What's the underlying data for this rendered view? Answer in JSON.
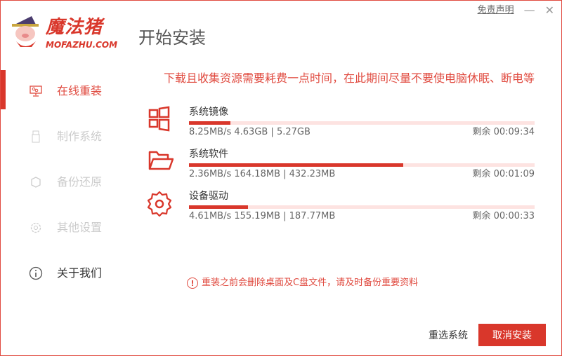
{
  "brand": {
    "name": "魔法猪",
    "domain": "MOFAZHU.COM"
  },
  "header": {
    "title": "开始安装",
    "disclaimer": "免责声明",
    "minimize": "—",
    "close": "✕"
  },
  "sidebar": {
    "items": [
      {
        "label": "在线重装",
        "icon": "monitor-icon",
        "active": true
      },
      {
        "label": "制作系统",
        "icon": "usb-icon"
      },
      {
        "label": "备份还原",
        "icon": "backup-icon"
      },
      {
        "label": "其他设置",
        "icon": "gear-icon"
      },
      {
        "label": "关于我们",
        "icon": "info-icon"
      }
    ]
  },
  "notice": "下载且收集资源需要耗费一点时间，在此期间尽量不要使电脑休眠、断电等",
  "tasks": [
    {
      "name": "系统镜像",
      "icon": "windows-icon",
      "stats": "8.25MB/s 4.63GB | 5.27GB",
      "remaining": "剩余 00:09:34",
      "progress": 12
    },
    {
      "name": "系统软件",
      "icon": "folder-icon",
      "stats": "2.36MB/s 164.18MB | 432.23MB",
      "remaining": "剩余 00:01:09",
      "progress": 62
    },
    {
      "name": "设备驱动",
      "icon": "gear-icon",
      "stats": "4.61MB/s 155.19MB | 187.77MB",
      "remaining": "剩余 00:00:33",
      "progress": 17
    }
  ],
  "warning": {
    "icon": "!",
    "text": "重装之前会删除桌面及C盘文件，请及时备份重要资料"
  },
  "footer": {
    "reselect": "重选系统",
    "cancel": "取消安装"
  },
  "colors": {
    "accent": "#d9372b",
    "track": "#fde3e1"
  }
}
